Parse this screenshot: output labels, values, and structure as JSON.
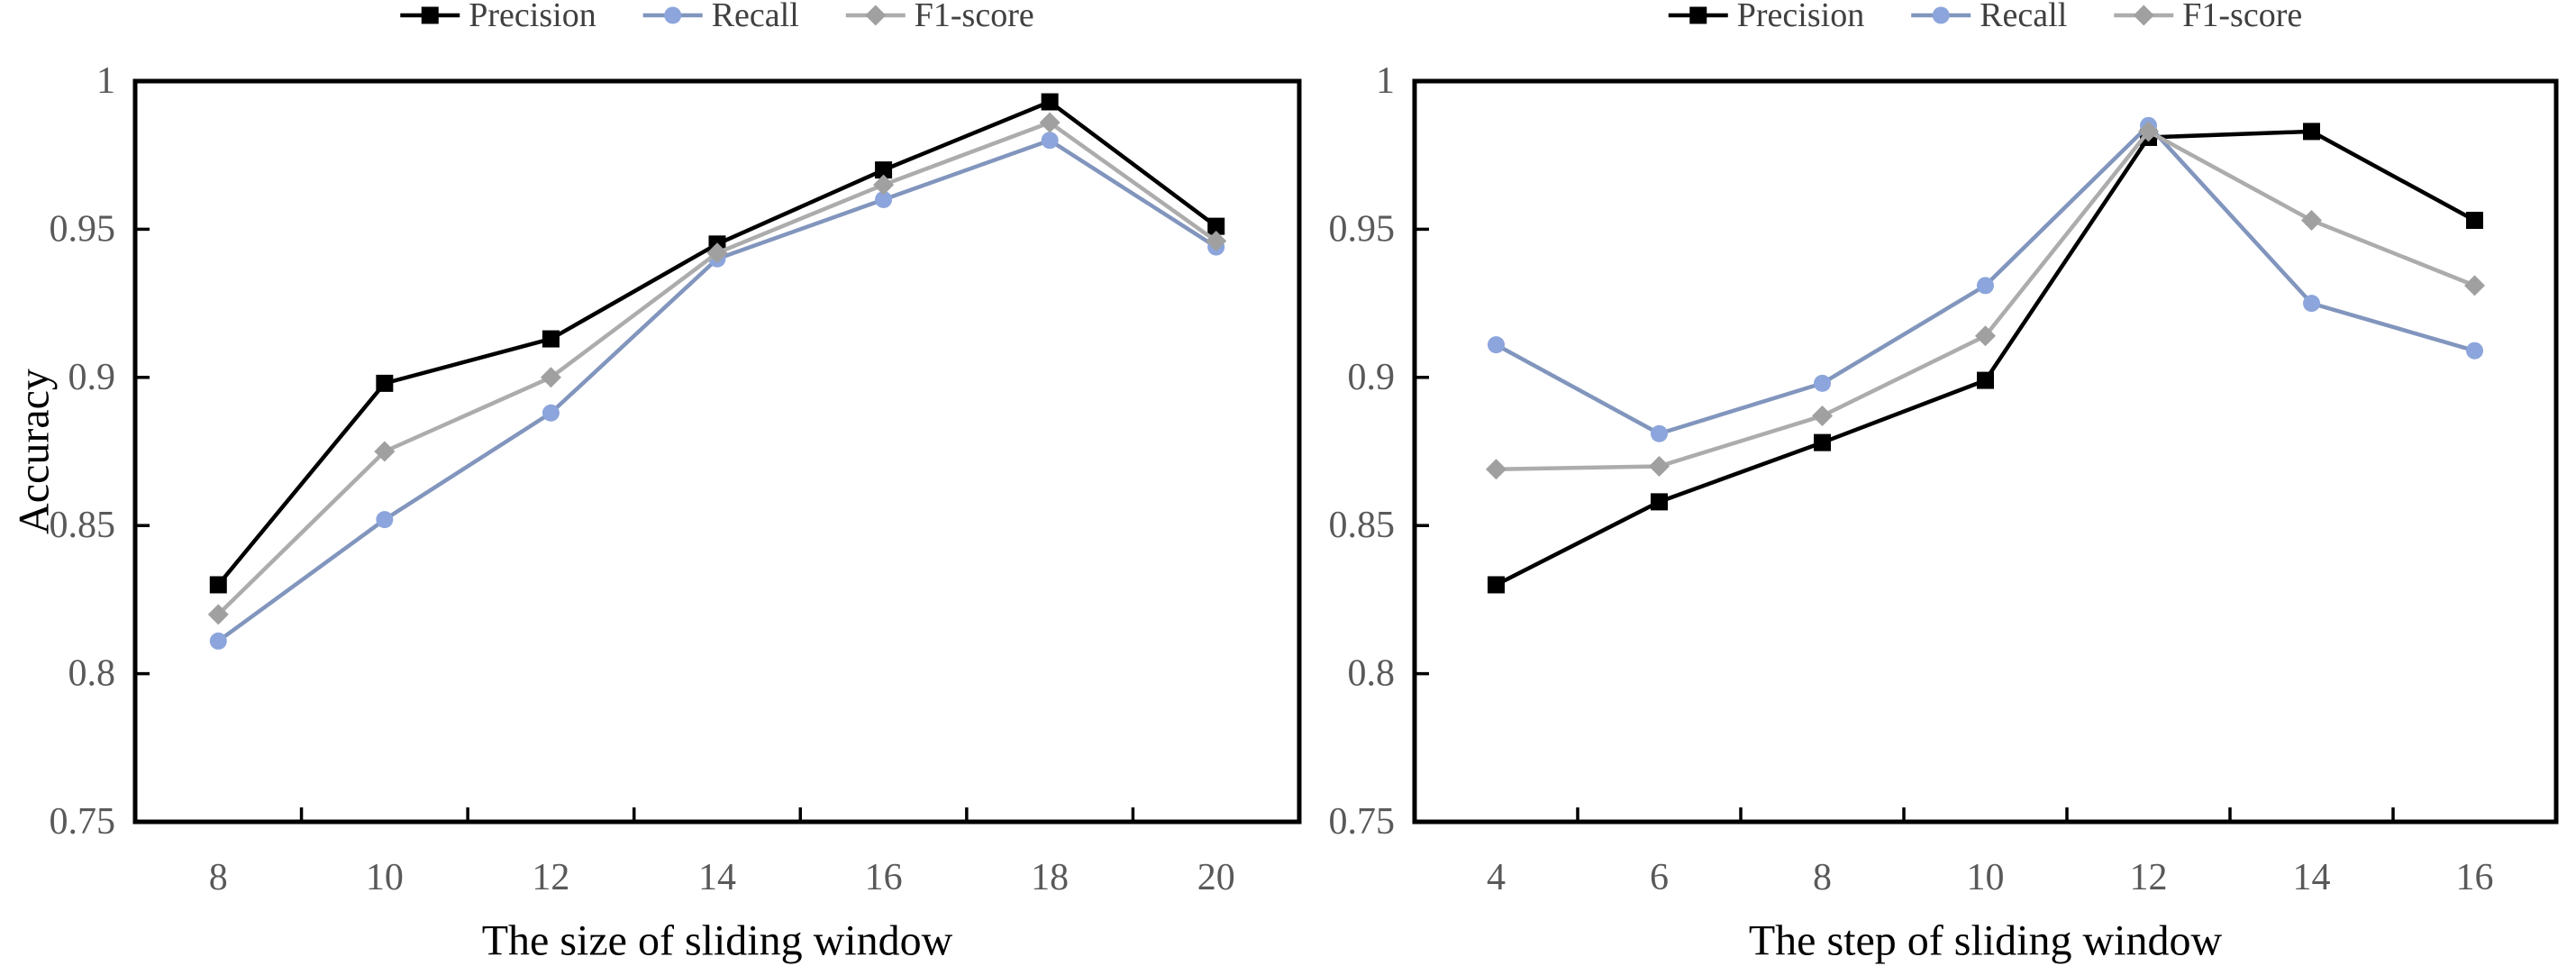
{
  "figure": {
    "background": "#ffffff",
    "frame_color": "#000000",
    "tick_label_color": "#595959",
    "legend_text_color": "#404040",
    "axis_title_color": "#000000"
  },
  "chart_data": [
    {
      "type": "line",
      "title": "",
      "xlabel": "The size of sliding window",
      "ylabel": "Accuracy",
      "categories": [
        "8",
        "10",
        "12",
        "14",
        "16",
        "18",
        "20"
      ],
      "ylim": [
        0.75,
        1.0
      ],
      "grid": false,
      "legend_position": "top-center",
      "yticks": [
        {
          "value": 1.0,
          "label": "1"
        },
        {
          "value": 0.95,
          "label": "0.95"
        },
        {
          "value": 0.9,
          "label": "0.9"
        },
        {
          "value": 0.85,
          "label": "0.85"
        },
        {
          "value": 0.8,
          "label": "0.8"
        },
        {
          "value": 0.75,
          "label": "0.75"
        }
      ],
      "series": [
        {
          "name": "Precision",
          "marker": "square",
          "line_color": "#000000",
          "marker_color": "#000000",
          "values": [
            0.83,
            0.898,
            0.913,
            0.945,
            0.97,
            0.993,
            0.951
          ]
        },
        {
          "name": "Recall",
          "marker": "circle",
          "line_color": "#8195BD",
          "marker_color": "#8CA5DC",
          "values": [
            0.811,
            0.852,
            0.888,
            0.94,
            0.96,
            0.98,
            0.944
          ]
        },
        {
          "name": "F1-score",
          "marker": "diamond",
          "line_color": "#ACACAC",
          "marker_color": "#A0A0A0",
          "values": [
            0.82,
            0.875,
            0.9,
            0.942,
            0.965,
            0.986,
            0.946
          ]
        }
      ]
    },
    {
      "type": "line",
      "title": "",
      "xlabel": "The step of sliding window",
      "ylabel": "",
      "categories": [
        "4",
        "6",
        "8",
        "10",
        "12",
        "14",
        "16"
      ],
      "ylim": [
        0.75,
        1.0
      ],
      "grid": false,
      "legend_position": "top-center",
      "yticks": [
        {
          "value": 1.0,
          "label": "1"
        },
        {
          "value": 0.95,
          "label": "0.95"
        },
        {
          "value": 0.9,
          "label": "0.9"
        },
        {
          "value": 0.85,
          "label": "0.85"
        },
        {
          "value": 0.8,
          "label": "0.8"
        },
        {
          "value": 0.75,
          "label": "0.75"
        }
      ],
      "series": [
        {
          "name": "Precision",
          "marker": "square",
          "line_color": "#000000",
          "marker_color": "#000000",
          "values": [
            0.83,
            0.858,
            0.878,
            0.899,
            0.981,
            0.983,
            0.953
          ]
        },
        {
          "name": "Recall",
          "marker": "circle",
          "line_color": "#8195BD",
          "marker_color": "#8CA5DC",
          "values": [
            0.911,
            0.881,
            0.898,
            0.931,
            0.985,
            0.925,
            0.909
          ]
        },
        {
          "name": "F1-score",
          "marker": "diamond",
          "line_color": "#ACACAC",
          "marker_color": "#A0A0A0",
          "values": [
            0.869,
            0.87,
            0.887,
            0.914,
            0.983,
            0.953,
            0.931
          ]
        }
      ]
    }
  ]
}
